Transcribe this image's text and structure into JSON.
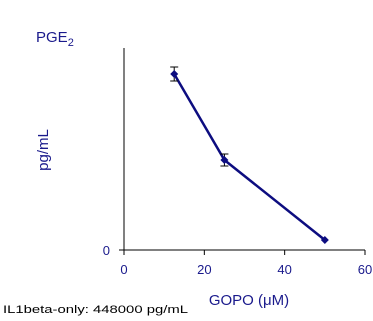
{
  "chart_data": {
    "type": "line",
    "title": "PGE",
    "title_subscript": "2",
    "xlabel": "GOPO (",
    "xlabel_unit": "μM",
    "xlabel_close": ")",
    "ylabel": "pg/mL",
    "footnote": "IL1beta-only: 448000 pg/mL",
    "xlim": [
      0,
      60
    ],
    "x_ticks": [
      0,
      20,
      40,
      60
    ],
    "ylim": [
      0,
      1
    ],
    "y_ticks": [
      0
    ],
    "y_scale": "unlabeled",
    "grid": false,
    "legend": "none",
    "series": [
      {
        "x": [
          12.5,
          25,
          50
        ],
        "y": [
          0.88,
          0.45,
          0.05
        ],
        "error": [
          0.035,
          0.03,
          0
        ]
      }
    ]
  },
  "colors": {
    "series": "#0d0d80",
    "text": "#1a1a8c",
    "axis": "#000000"
  }
}
